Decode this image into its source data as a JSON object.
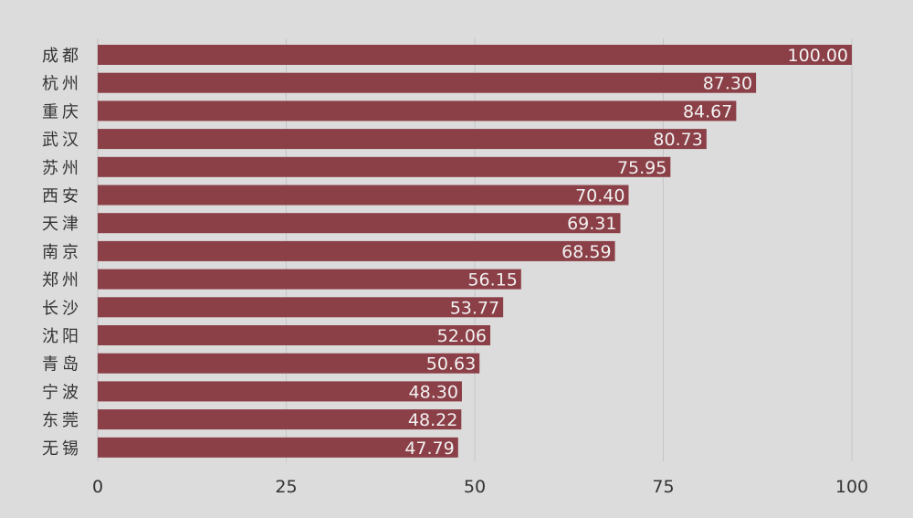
{
  "chart_data": {
    "type": "bar",
    "orientation": "horizontal",
    "categories": [
      "成都",
      "杭州",
      "重庆",
      "武汉",
      "苏州",
      "西安",
      "天津",
      "南京",
      "郑州",
      "长沙",
      "沈阳",
      "青岛",
      "宁波",
      "东莞",
      "无锡"
    ],
    "values": [
      100.0,
      87.3,
      84.67,
      80.73,
      75.95,
      70.4,
      69.31,
      68.59,
      56.15,
      53.77,
      52.06,
      50.63,
      48.3,
      48.22,
      47.79
    ],
    "value_labels": [
      "100.00",
      "87.30",
      "84.67",
      "80.73",
      "75.95",
      "70.40",
      "69.31",
      "68.59",
      "56.15",
      "53.77",
      "52.06",
      "50.63",
      "48.30",
      "48.22",
      "47.79"
    ],
    "xlim": [
      0,
      100
    ],
    "xticks": [
      0,
      25,
      50,
      75,
      100
    ],
    "grid": "vertical",
    "colors": {
      "bar": "#8b3f47",
      "background": "#dcdcdc",
      "label_text": "#f2f2f2",
      "axis_text": "#333333",
      "grid": "#c6c6c6"
    }
  }
}
